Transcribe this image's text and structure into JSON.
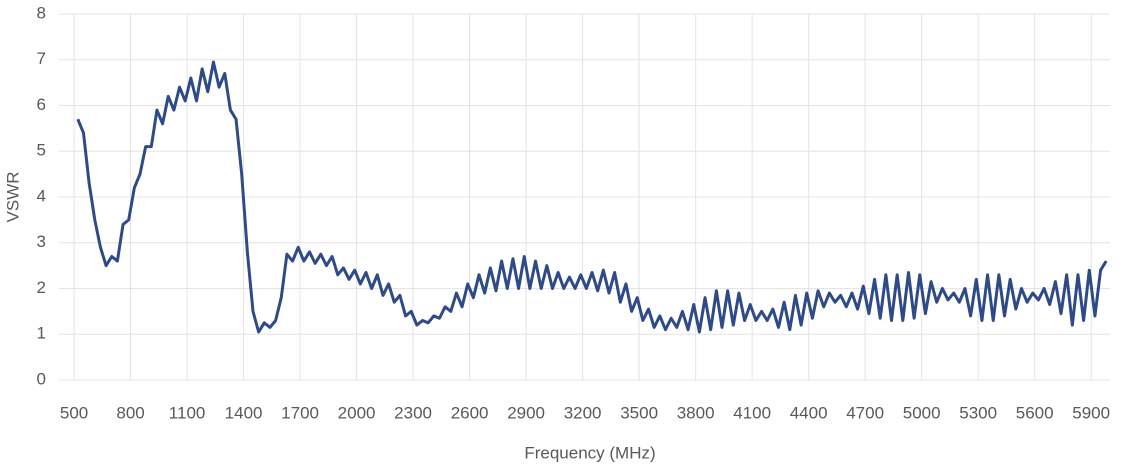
{
  "chart_data": {
    "type": "line",
    "x_label": "Frequency (MHz)",
    "y_label": "VSWR",
    "x": [
      520,
      550,
      580,
      610,
      640,
      670,
      700,
      730,
      760,
      790,
      820,
      850,
      880,
      910,
      940,
      970,
      1000,
      1030,
      1060,
      1090,
      1120,
      1150,
      1180,
      1210,
      1240,
      1270,
      1300,
      1330,
      1360,
      1390,
      1420,
      1450,
      1480,
      1510,
      1540,
      1570,
      1600,
      1630,
      1660,
      1690,
      1720,
      1750,
      1780,
      1810,
      1840,
      1870,
      1900,
      1930,
      1960,
      1990,
      2020,
      2050,
      2080,
      2110,
      2140,
      2170,
      2200,
      2230,
      2260,
      2290,
      2320,
      2350,
      2380,
      2410,
      2440,
      2470,
      2500,
      2530,
      2560,
      2590,
      2620,
      2650,
      2680,
      2710,
      2740,
      2770,
      2800,
      2830,
      2860,
      2890,
      2920,
      2950,
      2980,
      3010,
      3040,
      3070,
      3100,
      3130,
      3160,
      3190,
      3220,
      3250,
      3280,
      3310,
      3340,
      3370,
      3400,
      3430,
      3460,
      3490,
      3520,
      3550,
      3580,
      3610,
      3640,
      3670,
      3700,
      3730,
      3760,
      3790,
      3820,
      3850,
      3880,
      3910,
      3940,
      3970,
      4000,
      4030,
      4060,
      4090,
      4120,
      4150,
      4180,
      4210,
      4240,
      4270,
      4300,
      4330,
      4360,
      4390,
      4420,
      4450,
      4480,
      4510,
      4540,
      4570,
      4600,
      4630,
      4660,
      4690,
      4720,
      4750,
      4780,
      4810,
      4840,
      4870,
      4900,
      4930,
      4960,
      4990,
      5020,
      5050,
      5080,
      5110,
      5140,
      5170,
      5200,
      5230,
      5260,
      5290,
      5320,
      5350,
      5380,
      5410,
      5440,
      5470,
      5500,
      5530,
      5560,
      5590,
      5620,
      5650,
      5680,
      5710,
      5740,
      5770,
      5800,
      5830,
      5860,
      5890,
      5920,
      5950,
      5980
    ],
    "series": [
      {
        "name": "VSWR",
        "color": "#2e4a87",
        "values": [
          5.7,
          5.4,
          4.3,
          3.5,
          2.9,
          2.5,
          2.7,
          2.6,
          3.4,
          3.5,
          4.2,
          4.5,
          5.1,
          5.1,
          5.9,
          5.6,
          6.2,
          5.9,
          6.4,
          6.1,
          6.6,
          6.1,
          6.8,
          6.3,
          6.95,
          6.4,
          6.7,
          5.9,
          5.7,
          4.5,
          2.8,
          1.5,
          1.05,
          1.25,
          1.15,
          1.3,
          1.8,
          2.75,
          2.6,
          2.9,
          2.6,
          2.8,
          2.55,
          2.75,
          2.5,
          2.7,
          2.3,
          2.45,
          2.2,
          2.4,
          2.1,
          2.35,
          2.0,
          2.3,
          1.85,
          2.1,
          1.7,
          1.85,
          1.4,
          1.5,
          1.2,
          1.3,
          1.25,
          1.4,
          1.35,
          1.6,
          1.5,
          1.9,
          1.6,
          2.1,
          1.8,
          2.3,
          1.9,
          2.45,
          1.95,
          2.6,
          2.0,
          2.65,
          2.0,
          2.7,
          2.0,
          2.6,
          2.0,
          2.5,
          2.0,
          2.35,
          2.0,
          2.25,
          2.0,
          2.3,
          2.0,
          2.35,
          1.95,
          2.4,
          1.9,
          2.35,
          1.7,
          2.1,
          1.5,
          1.8,
          1.3,
          1.55,
          1.15,
          1.4,
          1.1,
          1.35,
          1.15,
          1.5,
          1.1,
          1.65,
          1.05,
          1.8,
          1.1,
          1.95,
          1.15,
          1.95,
          1.2,
          1.9,
          1.3,
          1.65,
          1.3,
          1.5,
          1.3,
          1.55,
          1.15,
          1.7,
          1.1,
          1.85,
          1.2,
          1.9,
          1.35,
          1.95,
          1.6,
          1.9,
          1.7,
          1.85,
          1.6,
          1.9,
          1.55,
          2.05,
          1.45,
          2.2,
          1.35,
          2.3,
          1.3,
          2.3,
          1.3,
          2.35,
          1.35,
          2.3,
          1.45,
          2.15,
          1.7,
          2.0,
          1.75,
          1.9,
          1.7,
          2.0,
          1.4,
          2.2,
          1.3,
          2.3,
          1.3,
          2.3,
          1.4,
          2.2,
          1.55,
          2.0,
          1.7,
          1.9,
          1.75,
          2.0,
          1.65,
          2.15,
          1.45,
          2.3,
          1.2,
          2.3,
          1.3,
          2.4,
          1.4,
          2.4,
          2.6
        ]
      }
    ],
    "xlim": [
      420,
      6000
    ],
    "xticks": [
      500,
      800,
      1100,
      1400,
      1700,
      2000,
      2300,
      2600,
      2900,
      3200,
      3500,
      3800,
      4100,
      4400,
      4700,
      5000,
      5300,
      5600,
      5900
    ],
    "ylim": [
      0,
      8
    ],
    "yticks": [
      0,
      1,
      2,
      3,
      4,
      5,
      6,
      7,
      8
    ],
    "grid": true
  }
}
